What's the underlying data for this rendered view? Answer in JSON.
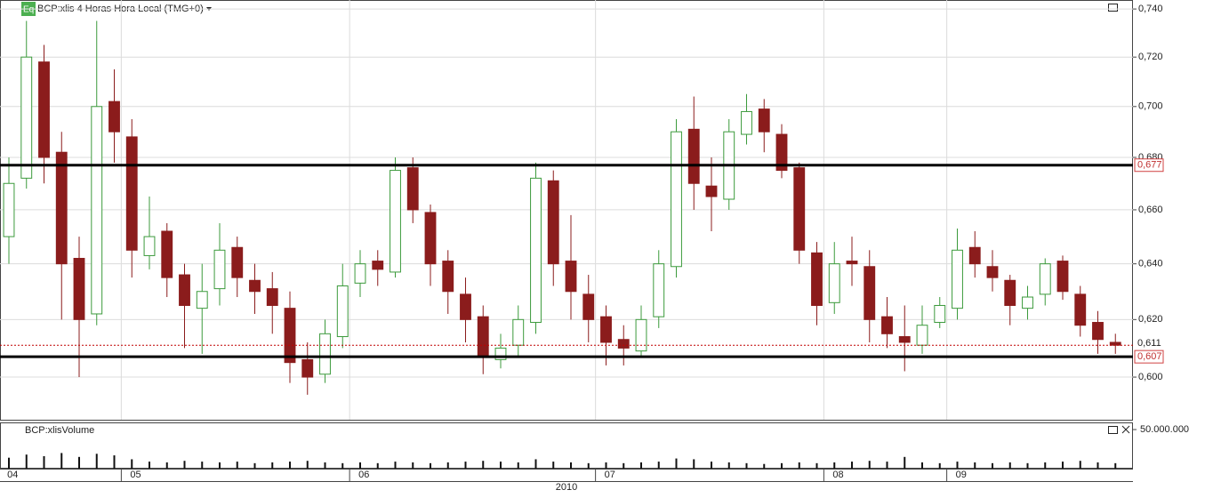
{
  "chart_data": [
    {
      "type": "candlestick",
      "badge": "Eq",
      "title": "BCP:xlis 4 Horas Hora Local (TMG+0)",
      "year": "2010",
      "categories": [
        "04",
        null,
        null,
        null,
        null,
        null,
        null,
        "05",
        null,
        null,
        null,
        null,
        null,
        null,
        null,
        null,
        null,
        null,
        null,
        null,
        "06",
        null,
        null,
        null,
        null,
        null,
        null,
        null,
        null,
        null,
        null,
        null,
        null,
        null,
        "07",
        null,
        null,
        null,
        null,
        null,
        null,
        null,
        null,
        null,
        null,
        null,
        null,
        "08",
        null,
        null,
        null,
        null,
        null,
        null,
        "09",
        null,
        null,
        null,
        null,
        null,
        null,
        null,
        null,
        null
      ],
      "open": [
        0.65,
        0.672,
        0.718,
        0.682,
        0.642,
        0.622,
        0.702,
        0.688,
        0.643,
        0.652,
        0.636,
        0.624,
        0.631,
        0.646,
        0.634,
        0.631,
        0.624,
        0.606,
        0.601,
        0.614,
        0.633,
        0.641,
        0.637,
        0.676,
        0.659,
        0.641,
        0.629,
        0.621,
        0.606,
        0.611,
        0.619,
        0.671,
        0.641,
        0.629,
        0.621,
        0.613,
        0.609,
        0.621,
        0.639,
        0.691,
        0.669,
        0.664,
        0.689,
        0.699,
        0.689,
        0.676,
        0.644,
        0.626,
        0.641,
        0.639,
        0.621,
        0.614,
        0.611,
        0.619,
        0.624,
        0.646,
        0.639,
        0.634,
        0.624,
        0.629,
        0.641,
        0.629,
        0.619,
        0.612
      ],
      "high": [
        0.68,
        0.735,
        0.725,
        0.69,
        0.65,
        0.735,
        0.715,
        0.695,
        0.665,
        0.655,
        0.64,
        0.64,
        0.655,
        0.65,
        0.64,
        0.637,
        0.63,
        0.612,
        0.62,
        0.64,
        0.645,
        0.645,
        0.68,
        0.68,
        0.662,
        0.645,
        0.635,
        0.625,
        0.615,
        0.625,
        0.678,
        0.675,
        0.658,
        0.636,
        0.625,
        0.618,
        0.625,
        0.645,
        0.695,
        0.704,
        0.68,
        0.695,
        0.705,
        0.703,
        0.693,
        0.678,
        0.648,
        0.648,
        0.65,
        0.645,
        0.628,
        0.625,
        0.625,
        0.628,
        0.653,
        0.652,
        0.645,
        0.636,
        0.632,
        0.642,
        0.643,
        0.632,
        0.623,
        0.615
      ],
      "low": [
        0.64,
        0.668,
        0.67,
        0.62,
        0.6,
        0.618,
        0.678,
        0.635,
        0.638,
        0.628,
        0.61,
        0.608,
        0.625,
        0.628,
        0.622,
        0.615,
        0.598,
        0.594,
        0.598,
        0.61,
        0.628,
        0.632,
        0.635,
        0.655,
        0.632,
        0.622,
        0.612,
        0.601,
        0.603,
        0.607,
        0.615,
        0.632,
        0.62,
        0.612,
        0.604,
        0.604,
        0.607,
        0.617,
        0.635,
        0.66,
        0.652,
        0.66,
        0.685,
        0.682,
        0.672,
        0.64,
        0.618,
        0.622,
        0.632,
        0.612,
        0.61,
        0.602,
        0.608,
        0.617,
        0.62,
        0.635,
        0.63,
        0.618,
        0.62,
        0.625,
        0.627,
        0.614,
        0.608,
        0.608
      ],
      "close": [
        0.67,
        0.72,
        0.68,
        0.64,
        0.62,
        0.7,
        0.69,
        0.645,
        0.65,
        0.635,
        0.625,
        0.63,
        0.645,
        0.635,
        0.63,
        0.625,
        0.605,
        0.6,
        0.615,
        0.632,
        0.64,
        0.638,
        0.675,
        0.66,
        0.64,
        0.63,
        0.62,
        0.607,
        0.61,
        0.62,
        0.672,
        0.64,
        0.63,
        0.62,
        0.612,
        0.61,
        0.62,
        0.64,
        0.69,
        0.67,
        0.665,
        0.69,
        0.698,
        0.69,
        0.675,
        0.645,
        0.625,
        0.64,
        0.64,
        0.62,
        0.615,
        0.612,
        0.618,
        0.625,
        0.645,
        0.64,
        0.635,
        0.625,
        0.628,
        0.64,
        0.63,
        0.618,
        0.613,
        0.611
      ],
      "up_color": "#3c9a3c",
      "down_color": "#8b1c1c",
      "log_scale": true,
      "ylim": [
        0.5856,
        0.7438
      ],
      "yticks": [
        {
          "value": 0.6,
          "label": "0,600"
        },
        {
          "value": 0.62,
          "label": "0,620"
        },
        {
          "value": 0.64,
          "label": "0,640"
        },
        {
          "value": 0.66,
          "label": "0,660"
        },
        {
          "value": 0.68,
          "label": "0,680"
        },
        {
          "value": 0.7,
          "label": "0,700"
        },
        {
          "value": 0.72,
          "label": "0,720"
        },
        {
          "value": 0.74,
          "label": "0,740"
        }
      ],
      "levels": [
        {
          "value": 0.677,
          "label": "0,677"
        },
        {
          "value": 0.607,
          "label": "0,607"
        }
      ],
      "last": {
        "value": 0.611,
        "label": "0,611"
      },
      "grid": true
    },
    {
      "type": "bar",
      "title": "BCP:xlisVolume",
      "values": [
        14000000,
        18000000,
        16000000,
        20000000,
        15000000,
        19000000,
        17000000,
        12000000,
        9000000,
        8000000,
        10000000,
        9000000,
        8000000,
        9000000,
        7000000,
        8000000,
        9000000,
        10000000,
        8000000,
        7000000,
        8000000,
        7000000,
        9000000,
        8000000,
        7000000,
        8000000,
        9000000,
        10000000,
        9000000,
        8000000,
        12000000,
        9000000,
        8000000,
        7000000,
        8000000,
        7000000,
        8000000,
        9000000,
        13000000,
        12000000,
        9000000,
        8000000,
        7000000,
        6000000,
        7000000,
        8000000,
        7000000,
        8000000,
        9000000,
        10000000,
        9000000,
        15000000,
        8000000,
        7000000,
        9000000,
        8000000,
        7000000,
        8000000,
        7000000,
        8000000,
        9000000,
        10000000,
        8000000,
        7000000
      ],
      "color": "#111111",
      "ylim": [
        0,
        58000000
      ],
      "yticks": [
        {
          "value": 50000000,
          "label": "50.000.000"
        }
      ]
    }
  ]
}
